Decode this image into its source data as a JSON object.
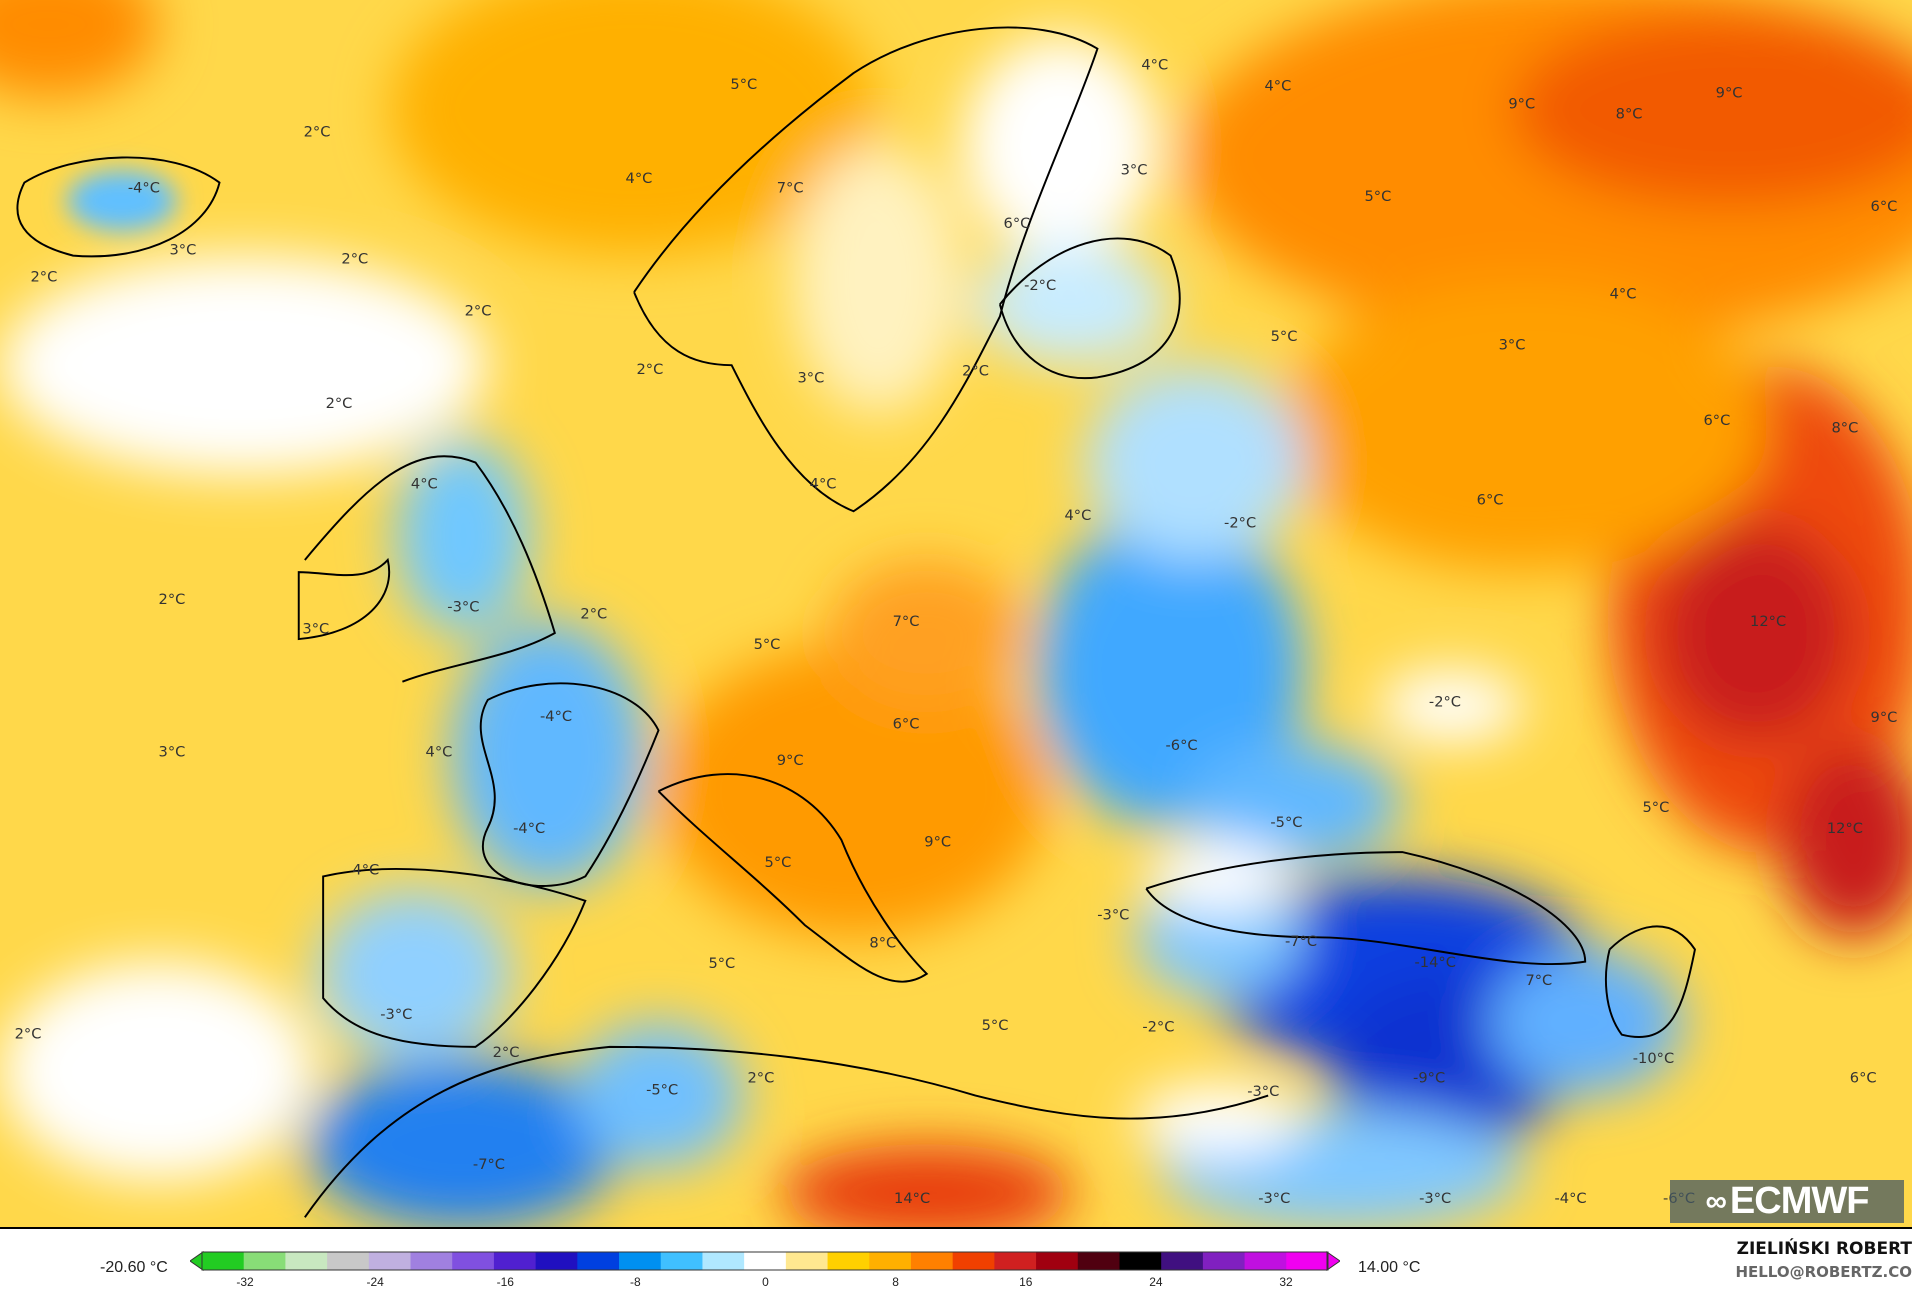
{
  "map": {
    "labels": [
      "5°C",
      "2°C",
      "4°C",
      "-4°C",
      "3°C",
      "2°C",
      "2°C",
      "2°C",
      "7°C",
      "4°C",
      "4°C",
      "9°C",
      "8°C",
      "9°C",
      "3°C",
      "6°C",
      "5°C",
      "6°C",
      "-2°C",
      "4°C",
      "5°C",
      "3°C",
      "2°C",
      "3°C",
      "2°C",
      "2°C",
      "6°C",
      "8°C",
      "4°C",
      "4°C",
      "4°C",
      "-2°C",
      "6°C",
      "2°C",
      "3°C",
      "-3°C",
      "2°C",
      "7°C",
      "5°C",
      "12°C",
      "-2°C",
      "-4°C",
      "6°C",
      "9°C",
      "4°C",
      "3°C",
      "9°C",
      "-6°C",
      "5°C",
      "-5°C",
      "12°C",
      "-4°C",
      "5°C",
      "9°C",
      "4°C",
      "-3°C",
      "8°C",
      "-7°C",
      "-14°C",
      "7°C",
      "5°C",
      "-3°C",
      "5°C",
      "-2°C",
      "2°C",
      "2°C",
      "-5°C",
      "2°C",
      "-9°C",
      "-10°C",
      "6°C",
      "-3°C",
      "-7°C",
      "14°C",
      "-3°C",
      "-3°C",
      "-4°C",
      "-6°C"
    ],
    "logo": "ECMWF"
  },
  "legend": {
    "min_label": "-20.60 °C",
    "max_label": "14.00 °C",
    "ticks": [
      "-32",
      "-24",
      "-16",
      "-8",
      "0",
      "8",
      "16",
      "24",
      "32"
    ],
    "colors": [
      "#22cc22",
      "#88dd77",
      "#c8e8c0",
      "#c8c8c8",
      "#c0b0e0",
      "#a080e0",
      "#8050e0",
      "#5020d0",
      "#2010c0",
      "#0040e0",
      "#0090f0",
      "#40c0ff",
      "#b0e8ff",
      "#ffffff",
      "#ffe890",
      "#ffd000",
      "#ffb000",
      "#ff8000",
      "#f04000",
      "#d02020",
      "#a00010",
      "#500010",
      "#000000",
      "#401080",
      "#8020c0",
      "#c010e0",
      "#f000f0"
    ]
  },
  "credits": {
    "author": "ZIELIŃSKI ROBERT",
    "email": "HELLO@ROBERTZ.CO"
  }
}
